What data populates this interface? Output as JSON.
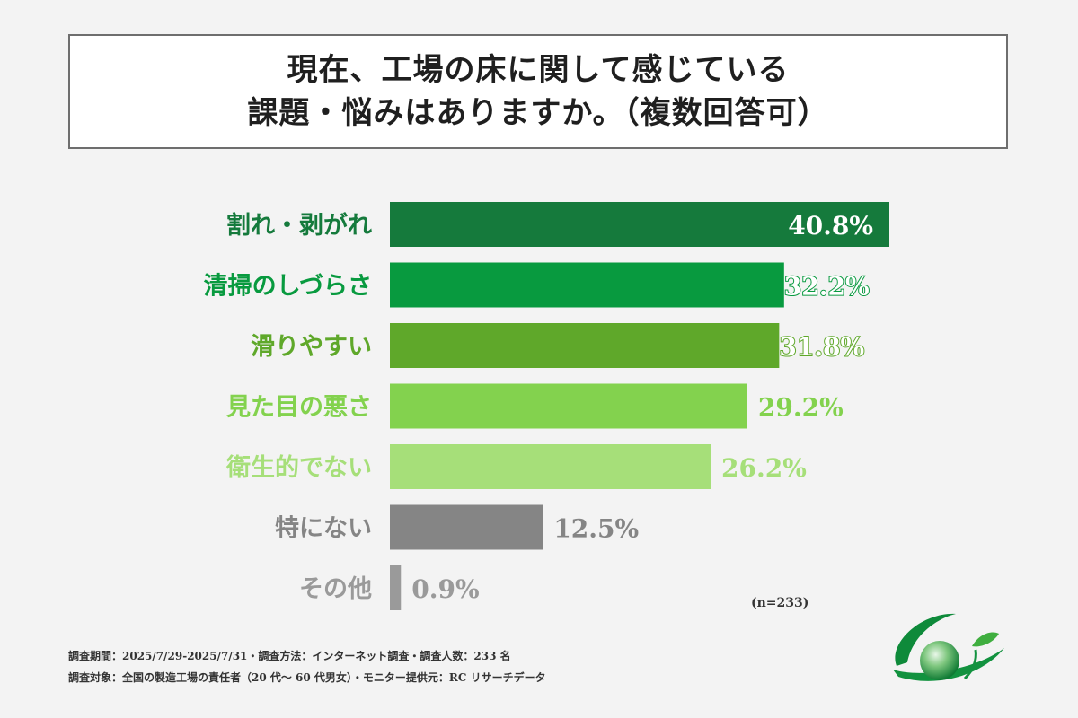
{
  "title": {
    "line1": "現在、工場の床に関して感じている",
    "line2": "課題・悩みはありますか。（複数回答可）"
  },
  "chart_data": {
    "type": "bar",
    "orientation": "horizontal",
    "categories": [
      "割れ・剥がれ",
      "清掃のしづらさ",
      "滑りやすい",
      "見た目の悪さ",
      "衛生的でない",
      "特にない",
      "その他"
    ],
    "values": [
      40.8,
      32.2,
      31.8,
      29.2,
      26.2,
      12.5,
      0.9
    ],
    "value_labels": [
      "40.8%",
      "32.2%",
      "31.8%",
      "29.2%",
      "26.2%",
      "12.5%",
      "0.9%"
    ],
    "unit": "%",
    "colors": [
      "#157a3c",
      "#089a3f",
      "#5fa82a",
      "#83d24e",
      "#a6df79",
      "#858585",
      "#9a9a9a"
    ],
    "label_colors": [
      "#157a3c",
      "#089a3f",
      "#5fa82a",
      "#83d24e",
      "#a6df79",
      "#858585",
      "#9a9a9a"
    ],
    "xlim": [
      0,
      40.8
    ],
    "grid": false,
    "note": "(n=233)"
  },
  "footer": {
    "line1": "調査期間：2025/7/29-2025/7/31・調査方法：インターネット調査・調査人数：233 名",
    "line2": "調査対象：全国の製造工場の責任者（20 代〜 60 代男女）・モニター提供元：RC リサーチデータ"
  }
}
